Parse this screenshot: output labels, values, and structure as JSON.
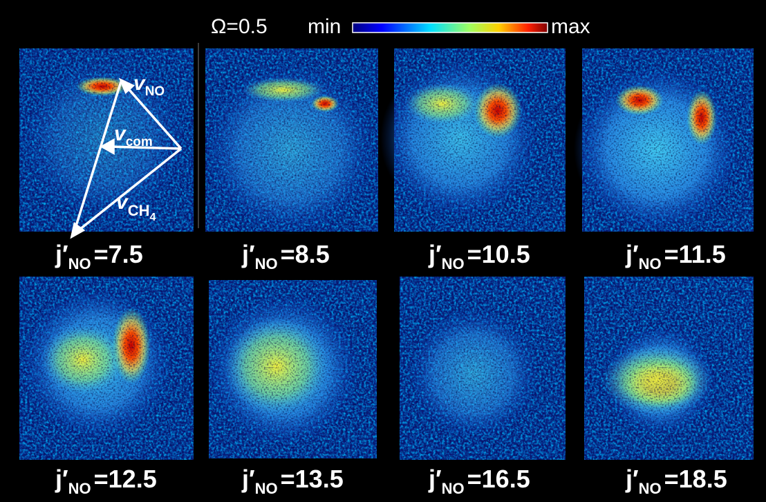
{
  "header": {
    "omega": "Ω=0.5",
    "min": "min",
    "max": "max"
  },
  "vectors": [
    {
      "symbol": "v",
      "subscript": "NO"
    },
    {
      "symbol": "v",
      "subscript": "com"
    },
    {
      "symbol": "v",
      "subscript": "CH",
      "subsubscript": "4"
    }
  ],
  "label_symbol": "j′",
  "label_subscript": "NO",
  "panels": [
    "=7.5",
    "=8.5",
    "=10.5",
    "=11.5",
    "=12.5",
    "=13.5",
    "=16.5",
    "=18.5"
  ]
}
